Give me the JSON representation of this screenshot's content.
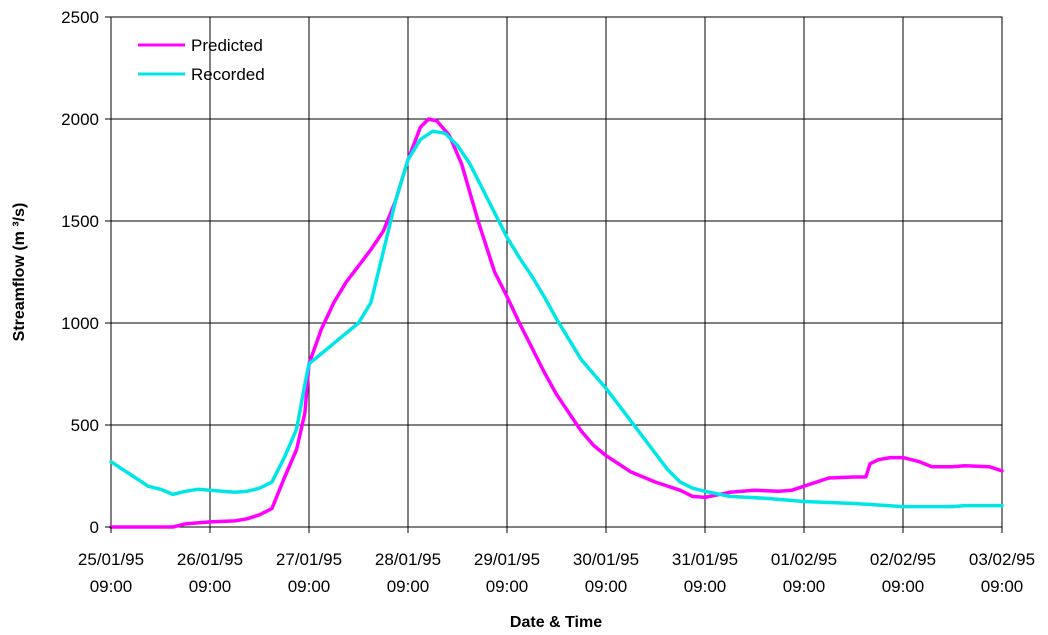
{
  "chart_data": {
    "type": "line",
    "xlabel": "Date & Time",
    "ylabel": "Streamflow (m ³/s)",
    "ylim": [
      0,
      2500
    ],
    "yticks": [
      0,
      500,
      1000,
      1500,
      2000,
      2500
    ],
    "x_range": [
      "25/01/95 09:00",
      "03/02/95 09:00"
    ],
    "x_ticks": [
      {
        "date": "25/01/95",
        "time": "09:00"
      },
      {
        "date": "26/01/95",
        "time": "09:00"
      },
      {
        "date": "27/01/95",
        "time": "09:00"
      },
      {
        "date": "28/01/95",
        "time": "09:00"
      },
      {
        "date": "29/01/95",
        "time": "09:00"
      },
      {
        "date": "30/01/95",
        "time": "09:00"
      },
      {
        "date": "31/01/95",
        "time": "09:00"
      },
      {
        "date": "01/02/95",
        "time": "09:00"
      },
      {
        "date": "02/02/95",
        "time": "09:00"
      },
      {
        "date": "03/02/95",
        "time": "09:00"
      }
    ],
    "grid": true,
    "legend": "top-left",
    "series": [
      {
        "name": "Predicted",
        "color": "#ff00ff",
        "points": [
          [
            "25/01/95 09:00",
            0
          ],
          [
            "25/01/95 21:00",
            0
          ],
          [
            "26/01/95 00:00",
            0
          ],
          [
            "26/01/95 03:00",
            15
          ],
          [
            "26/01/95 06:00",
            20
          ],
          [
            "26/01/95 09:00",
            25
          ],
          [
            "26/01/95 15:00",
            30
          ],
          [
            "26/01/95 18:00",
            40
          ],
          [
            "26/01/95 21:00",
            60
          ],
          [
            "27/01/95 00:00",
            90
          ],
          [
            "27/01/95 03:00",
            240
          ],
          [
            "27/01/95 06:00",
            380
          ],
          [
            "27/01/95 08:00",
            560
          ],
          [
            "27/01/95 09:00",
            800
          ],
          [
            "27/01/95 12:00",
            970
          ],
          [
            "27/01/95 15:00",
            1100
          ],
          [
            "27/01/95 18:00",
            1200
          ],
          [
            "27/01/95 21:00",
            1280
          ],
          [
            "28/01/95 00:00",
            1360
          ],
          [
            "28/01/95 03:00",
            1450
          ],
          [
            "28/01/95 06:00",
            1600
          ],
          [
            "28/01/95 09:00",
            1800
          ],
          [
            "28/01/95 12:00",
            1960
          ],
          [
            "28/01/95 14:00",
            2000
          ],
          [
            "28/01/95 16:00",
            1990
          ],
          [
            "28/01/95 19:00",
            1920
          ],
          [
            "28/01/95 22:00",
            1780
          ],
          [
            "29/01/95 02:00",
            1500
          ],
          [
            "29/01/95 06:00",
            1250
          ],
          [
            "29/01/95 09:00",
            1130
          ],
          [
            "29/01/95 12:00",
            1000
          ],
          [
            "29/01/95 15:00",
            880
          ],
          [
            "29/01/95 18:00",
            760
          ],
          [
            "29/01/95 21:00",
            650
          ],
          [
            "30/01/95 00:00",
            560
          ],
          [
            "30/01/95 03:00",
            470
          ],
          [
            "30/01/95 06:00",
            400
          ],
          [
            "30/01/95 09:00",
            350
          ],
          [
            "30/01/95 15:00",
            270
          ],
          [
            "30/01/95 21:00",
            220
          ],
          [
            "31/01/95 03:00",
            180
          ],
          [
            "31/01/95 06:00",
            150
          ],
          [
            "31/01/95 09:00",
            145
          ],
          [
            "31/01/95 15:00",
            170
          ],
          [
            "31/01/95 21:00",
            180
          ],
          [
            "01/02/95 03:00",
            175
          ],
          [
            "01/02/95 06:00",
            180
          ],
          [
            "01/02/95 09:00",
            200
          ],
          [
            "01/02/95 15:00",
            240
          ],
          [
            "01/02/95 21:00",
            245
          ],
          [
            "02/02/95 00:00",
            245
          ],
          [
            "02/02/95 01:00",
            310
          ],
          [
            "02/02/95 03:00",
            330
          ],
          [
            "02/02/95 06:00",
            340
          ],
          [
            "02/02/95 09:00",
            340
          ],
          [
            "02/02/95 13:00",
            320
          ],
          [
            "02/02/95 16:00",
            295
          ],
          [
            "02/02/95 21:00",
            295
          ],
          [
            "03/02/95 00:00",
            300
          ],
          [
            "03/02/95 06:00",
            295
          ],
          [
            "03/02/95 09:00",
            275
          ]
        ]
      },
      {
        "name": "Recorded",
        "color": "#00e6e6",
        "points": [
          [
            "25/01/95 09:00",
            320
          ],
          [
            "25/01/95 12:00",
            280
          ],
          [
            "25/01/95 15:00",
            240
          ],
          [
            "25/01/95 18:00",
            200
          ],
          [
            "25/01/95 21:00",
            185
          ],
          [
            "26/01/95 00:00",
            160
          ],
          [
            "26/01/95 03:00",
            175
          ],
          [
            "26/01/95 06:00",
            185
          ],
          [
            "26/01/95 09:00",
            180
          ],
          [
            "26/01/95 12:00",
            175
          ],
          [
            "26/01/95 15:00",
            170
          ],
          [
            "26/01/95 18:00",
            175
          ],
          [
            "26/01/95 21:00",
            190
          ],
          [
            "27/01/95 00:00",
            220
          ],
          [
            "27/01/95 03:00",
            340
          ],
          [
            "27/01/95 06:00",
            480
          ],
          [
            "27/01/95 08:00",
            700
          ],
          [
            "27/01/95 09:00",
            800
          ],
          [
            "27/01/95 12:00",
            850
          ],
          [
            "27/01/95 18:00",
            950
          ],
          [
            "27/01/95 21:00",
            1000
          ],
          [
            "28/01/95 00:00",
            1100
          ],
          [
            "28/01/95 03:00",
            1350
          ],
          [
            "28/01/95 06:00",
            1600
          ],
          [
            "28/01/95 09:00",
            1800
          ],
          [
            "28/01/95 12:00",
            1900
          ],
          [
            "28/01/95 15:00",
            1940
          ],
          [
            "28/01/95 18:00",
            1930
          ],
          [
            "28/01/95 21:00",
            1870
          ],
          [
            "29/01/95 00:00",
            1780
          ],
          [
            "29/01/95 03:00",
            1660
          ],
          [
            "29/01/95 06:00",
            1540
          ],
          [
            "29/01/95 09:00",
            1420
          ],
          [
            "29/01/95 12:00",
            1320
          ],
          [
            "29/01/95 15:00",
            1230
          ],
          [
            "29/01/95 18:00",
            1130
          ],
          [
            "29/01/95 21:00",
            1020
          ],
          [
            "30/01/95 00:00",
            920
          ],
          [
            "30/01/95 03:00",
            820
          ],
          [
            "30/01/95 06:00",
            750
          ],
          [
            "30/01/95 09:00",
            680
          ],
          [
            "30/01/95 12:00",
            600
          ],
          [
            "30/01/95 15:00",
            520
          ],
          [
            "30/01/95 18:00",
            440
          ],
          [
            "30/01/95 21:00",
            360
          ],
          [
            "31/01/95 00:00",
            280
          ],
          [
            "31/01/95 03:00",
            220
          ],
          [
            "31/01/95 06:00",
            190
          ],
          [
            "31/01/95 09:00",
            175
          ],
          [
            "31/01/95 15:00",
            150
          ],
          [
            "01/02/95 00:00",
            140
          ],
          [
            "01/02/95 09:00",
            125
          ],
          [
            "01/02/95 21:00",
            115
          ],
          [
            "02/02/95 09:00",
            100
          ],
          [
            "02/02/95 21:00",
            100
          ],
          [
            "03/02/95 00:00",
            105
          ],
          [
            "03/02/95 09:00",
            105
          ]
        ]
      }
    ]
  }
}
